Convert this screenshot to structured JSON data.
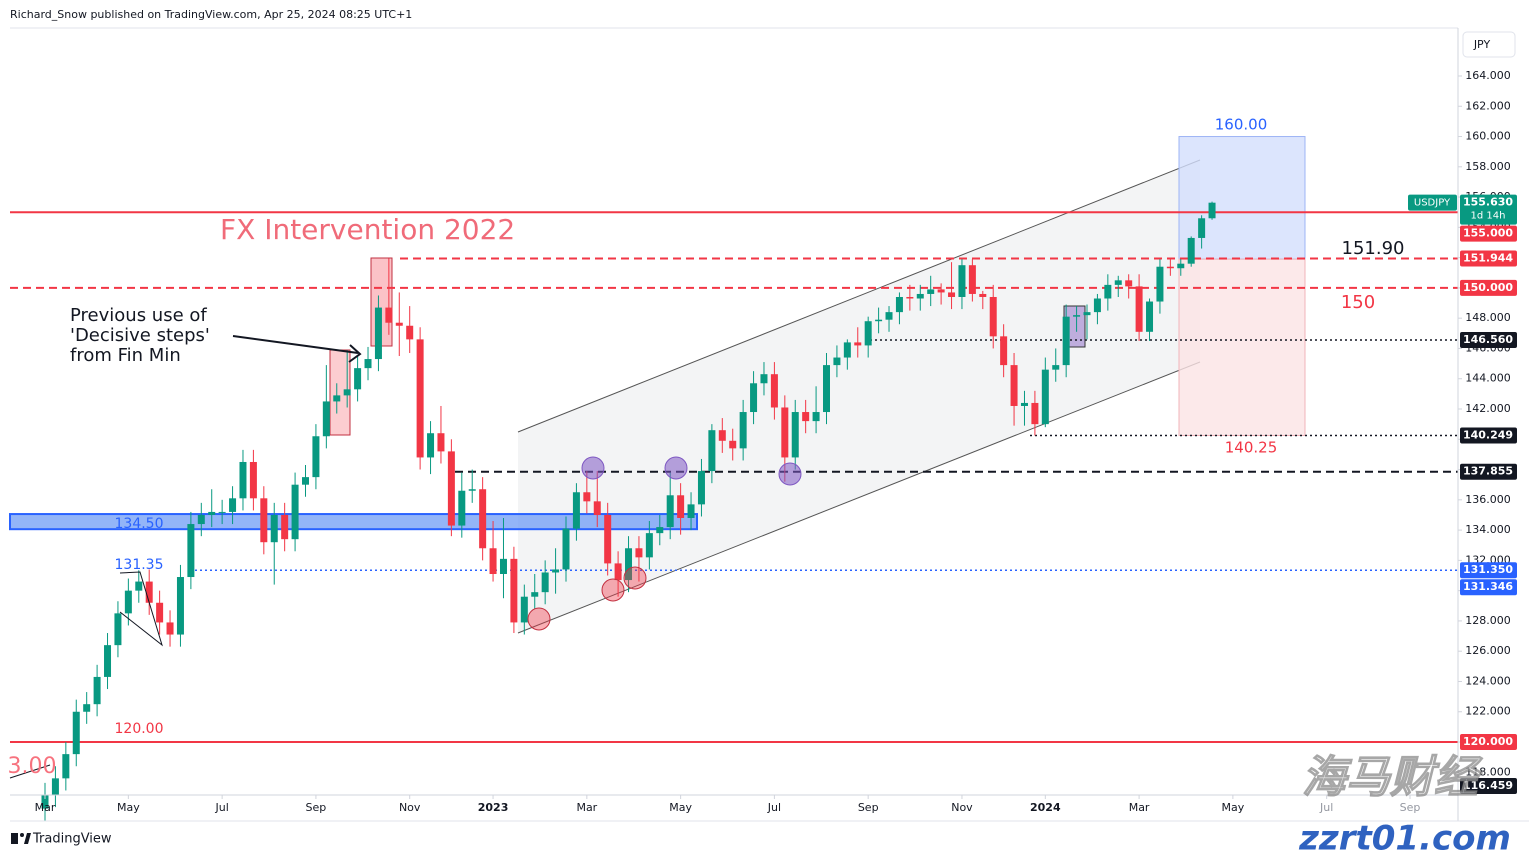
{
  "chart_data": {
    "type": "candlestick",
    "header": "Richard_Snow published on TradingView.com, Apr 25, 2024 08:25 UTC+1",
    "currency": "JPY",
    "footer": "TradingView",
    "countdown": "1d 14h",
    "watermark": [
      "海马财经",
      "zzrt01.com"
    ],
    "annotations": [
      "FX Intervention 2022",
      "Previous use of",
      "'Decisive steps'",
      "from Fin Min",
      "160.00",
      "151.90",
      "150",
      "140.25",
      "134.50",
      "131.35",
      "120.00",
      "3.00"
    ],
    "grid": false,
    "ylim": [
      116.5,
      167.17
    ],
    "yticks": [
      {
        "value": 118,
        "label": "118.000"
      },
      {
        "value": 120,
        "label": "120.000"
      },
      {
        "value": 122,
        "label": "122.000"
      },
      {
        "value": 124,
        "label": "124.000"
      },
      {
        "value": 126,
        "label": "126.000"
      },
      {
        "value": 128,
        "label": "128.000"
      },
      {
        "value": 130,
        "label": "130.000"
      },
      {
        "value": 132,
        "label": "132.000"
      },
      {
        "value": 134,
        "label": "134.000"
      },
      {
        "value": 136,
        "label": "136.000"
      },
      {
        "value": 138,
        "label": "138.000"
      },
      {
        "value": 140,
        "label": "140.000"
      },
      {
        "value": 142,
        "label": "142.000"
      },
      {
        "value": 144,
        "label": "144.000"
      },
      {
        "value": 146,
        "label": "146.000"
      },
      {
        "value": 148,
        "label": "148.000"
      },
      {
        "value": 150,
        "label": "150.000"
      },
      {
        "value": 152,
        "label": "152.000"
      },
      {
        "value": 154,
        "label": "154.000"
      },
      {
        "value": 156,
        "label": "156.000"
      },
      {
        "value": 158,
        "label": "158.000"
      },
      {
        "value": 160,
        "label": "160.000"
      },
      {
        "value": 162,
        "label": "162.000"
      },
      {
        "value": 164,
        "label": "164.000"
      }
    ],
    "categories": [
      "Mar",
      null,
      null,
      null,
      null,
      null,
      null,
      null,
      "May",
      null,
      null,
      null,
      null,
      null,
      null,
      null,
      null,
      "Jul",
      null,
      null,
      null,
      null,
      null,
      null,
      null,
      null,
      "Sep",
      null,
      null,
      null,
      null,
      null,
      null,
      null,
      null,
      "Nov",
      null,
      null,
      null,
      null,
      null,
      null,
      null,
      "2023",
      null,
      null,
      null,
      null,
      null,
      null,
      null,
      null,
      "Mar",
      null,
      null,
      null,
      null,
      null,
      null,
      null,
      null,
      "May",
      null,
      null,
      null,
      null,
      null,
      null,
      null,
      null,
      "Jul",
      null,
      null,
      null,
      null,
      null,
      null,
      null,
      null,
      "Sep",
      null,
      null,
      null,
      null,
      null,
      null,
      null,
      null,
      "Nov",
      null,
      null,
      null,
      null,
      null,
      null,
      null,
      "2024",
      null,
      null,
      null,
      null,
      null,
      null,
      null,
      null,
      "Mar",
      null,
      null,
      null,
      null,
      null,
      null,
      null,
      null,
      "May",
      null,
      null,
      null,
      null,
      null,
      null,
      null,
      null,
      "Jul",
      null,
      null,
      null,
      null,
      null,
      null,
      null,
      "Sep",
      null,
      null,
      null,
      null
    ],
    "series": [
      {
        "name": "USDJPY",
        "up_color": "#089981",
        "down_color": "#f23645",
        "open": [
          115.6,
          116.5,
          117.6,
          119.2,
          122.0,
          122.5,
          124.3,
          126.4,
          128.5,
          130.0,
          130.6,
          129.2,
          127.9,
          127.1,
          130.9,
          134.4,
          135.0,
          135.2,
          135.2,
          136.1,
          138.5,
          136.1,
          133.2,
          135.0,
          133.4,
          137.0,
          137.5,
          140.2,
          142.5,
          142.9,
          143.3,
          144.7,
          145.3,
          148.7,
          147.7,
          147.5,
          146.6,
          138.8,
          140.4,
          139.2,
          134.3,
          136.6,
          136.7,
          132.8,
          131.1,
          132.1,
          127.9,
          129.6,
          129.9,
          131.2,
          131.4,
          134.1,
          136.5,
          135.9,
          135.0,
          131.8,
          130.7,
          132.8,
          132.2,
          133.8,
          134.2,
          136.3,
          134.8,
          135.7,
          137.9,
          140.6,
          139.9,
          139.4,
          141.8,
          143.7,
          144.3,
          142.1,
          138.8,
          141.8,
          141.2,
          141.8,
          144.9,
          145.4,
          146.4,
          146.2,
          147.8,
          147.9,
          148.4,
          149.4,
          149.3,
          149.6,
          149.9,
          149.7,
          149.4,
          151.5,
          149.6,
          149.4,
          146.8,
          144.9,
          142.2,
          142.4,
          141.0,
          144.6,
          144.9,
          148.1,
          148.2,
          148.4,
          149.3,
          150.2,
          150.5,
          150.1,
          147.1,
          149.1,
          151.4,
          151.3,
          151.6,
          153.3,
          154.6,
          null,
          null,
          null,
          null,
          null,
          null,
          null,
          null,
          null,
          null,
          null,
          null,
          null,
          null,
          null,
          null,
          null,
          null,
          null,
          null,
          null,
          null,
          null
        ],
        "high": [
          117.3,
          118.4,
          120.0,
          122.8,
          123.3,
          125.1,
          127.2,
          129.3,
          130.8,
          131.35,
          131.4,
          130.0,
          128.7,
          131.7,
          135.2,
          135.8,
          136.7,
          136.0,
          136.9,
          139.3,
          139.3,
          136.9,
          135.8,
          135.8,
          137.8,
          138.3,
          141.0,
          144.9,
          143.7,
          145.9,
          145.5,
          146.1,
          149.5,
          151.94,
          149.7,
          148.8,
          147.4,
          141.2,
          142.2,
          140.0,
          137.8,
          138.0,
          137.5,
          134.6,
          134.8,
          132.9,
          130.4,
          131.1,
          132.0,
          132.8,
          134.9,
          137.1,
          137.9,
          137.9,
          135.8,
          132.6,
          133.6,
          133.6,
          134.6,
          135.0,
          137.8,
          137.1,
          136.5,
          138.7,
          141.0,
          141.4,
          140.7,
          142.6,
          144.5,
          145.1,
          145.1,
          142.9,
          142.6,
          142.6,
          143.5,
          145.7,
          146.2,
          146.6,
          147.4,
          148.1,
          148.7,
          148.8,
          149.7,
          150.2,
          150.2,
          150.8,
          150.3,
          151.7,
          151.9,
          151.9,
          149.8,
          150.2,
          147.6,
          145.7,
          143.2,
          143.2,
          145.4,
          146.0,
          148.9,
          148.8,
          148.9,
          149.6,
          150.9,
          150.8,
          150.9,
          150.9,
          149.3,
          151.9,
          151.97,
          151.9,
          153.4,
          154.8,
          155.7,
          null,
          null,
          null,
          null,
          null,
          null,
          null,
          null,
          null,
          null,
          null,
          null,
          null,
          null,
          null,
          null,
          null,
          null,
          null,
          null,
          null,
          null,
          null
        ],
        "low": [
          114.8,
          115.7,
          116.8,
          118.4,
          121.2,
          121.7,
          123.5,
          125.6,
          127.7,
          129.2,
          128.4,
          127.1,
          126.3,
          126.3,
          130.1,
          133.6,
          134.2,
          134.4,
          134.4,
          135.3,
          135.3,
          132.4,
          130.4,
          132.6,
          132.6,
          136.2,
          136.7,
          139.4,
          141.7,
          142.1,
          142.5,
          143.9,
          144.5,
          146.9,
          145.5,
          145.7,
          138.0,
          137.7,
          138.4,
          133.6,
          133.5,
          135.8,
          132.0,
          130.6,
          129.5,
          127.2,
          127.1,
          128.8,
          129.1,
          129.8,
          130.6,
          133.3,
          135.1,
          134.2,
          131.0,
          129.6,
          129.9,
          130.6,
          131.4,
          133.0,
          133.4,
          133.7,
          134.0,
          134.9,
          137.1,
          139.1,
          138.6,
          138.6,
          141.0,
          142.9,
          141.3,
          137.2,
          138.0,
          140.4,
          140.4,
          141.0,
          144.1,
          144.6,
          145.4,
          145.4,
          147.0,
          147.1,
          147.6,
          148.5,
          148.5,
          148.8,
          148.9,
          148.6,
          148.6,
          149.1,
          148.6,
          146.0,
          144.1,
          140.9,
          140.9,
          140.25,
          140.8,
          143.8,
          144.1,
          147.1,
          146.6,
          147.6,
          148.5,
          149.4,
          149.3,
          146.5,
          146.5,
          148.3,
          150.8,
          150.8,
          151.4,
          152.6,
          154.5,
          null,
          null,
          null,
          null,
          null,
          null,
          null,
          null,
          null,
          null,
          null,
          null,
          null,
          null,
          null,
          null,
          null,
          null,
          null,
          null,
          null,
          null,
          null
        ],
        "close": [
          116.5,
          117.6,
          119.2,
          122.0,
          122.5,
          124.3,
          126.4,
          128.5,
          130.0,
          130.6,
          129.2,
          127.9,
          127.1,
          130.9,
          134.4,
          135.0,
          135.2,
          135.2,
          136.1,
          138.5,
          136.1,
          133.2,
          135.0,
          133.4,
          137.0,
          137.5,
          140.2,
          142.5,
          142.9,
          143.3,
          144.7,
          145.3,
          148.7,
          147.7,
          147.5,
          146.6,
          138.8,
          140.4,
          139.2,
          134.3,
          136.6,
          136.7,
          132.8,
          131.1,
          132.1,
          127.9,
          129.6,
          129.9,
          131.2,
          131.4,
          134.1,
          136.5,
          135.9,
          135.0,
          131.8,
          130.7,
          132.8,
          132.2,
          133.8,
          134.2,
          136.3,
          134.8,
          135.7,
          137.9,
          140.6,
          139.9,
          139.4,
          141.8,
          143.7,
          144.3,
          142.1,
          138.8,
          141.8,
          141.2,
          141.8,
          144.9,
          145.4,
          146.4,
          146.2,
          147.8,
          147.9,
          148.4,
          149.4,
          149.3,
          149.6,
          149.9,
          149.7,
          149.4,
          151.5,
          149.6,
          149.4,
          146.8,
          144.9,
          142.2,
          142.4,
          141.0,
          144.6,
          144.9,
          148.1,
          148.2,
          148.4,
          149.3,
          150.2,
          150.5,
          150.1,
          147.1,
          149.1,
          151.4,
          151.3,
          151.6,
          153.3,
          154.6,
          155.63,
          null,
          null,
          null,
          null,
          null,
          null,
          null,
          null,
          null,
          null,
          null,
          null,
          null,
          null,
          null,
          null,
          null,
          null,
          null,
          null,
          null,
          null,
          null
        ]
      }
    ],
    "levels": [
      {
        "value": 155.0,
        "color": "#f23645",
        "style": "solid"
      },
      {
        "value": 151.944,
        "color": "#f23645",
        "style": "dashed"
      },
      {
        "value": 150.0,
        "color": "#f23645",
        "style": "dashed"
      },
      {
        "value": 146.56,
        "color": "#131722",
        "style": "dotted"
      },
      {
        "value": 140.249,
        "color": "#131722",
        "style": "dotted"
      },
      {
        "value": 137.855,
        "color": "#131722",
        "style": "dashed"
      },
      {
        "value": 131.35,
        "color": "#2962ff",
        "style": "dotted"
      },
      {
        "value": 120.0,
        "color": "#f23645",
        "style": "solid"
      }
    ],
    "zones": [
      {
        "from": 134.06,
        "to": 135.06,
        "color": "#6f9cf5"
      },
      {
        "from": 151.9,
        "to": 160.0,
        "color": "#d3defc"
      },
      {
        "from": 140.25,
        "to": 151.9,
        "color": "#fbe3e5"
      }
    ],
    "price_tags": [
      {
        "value": 155.63,
        "label": "155.630",
        "color": "#089981"
      },
      {
        "value": 155.0,
        "label": "155.000",
        "color": "#f23645"
      },
      {
        "value": 151.944,
        "label": "151.944",
        "color": "#f23645"
      },
      {
        "value": 150.0,
        "label": "150.000",
        "color": "#f23645"
      },
      {
        "value": 146.56,
        "label": "146.560",
        "color": "#131722"
      },
      {
        "value": 140.249,
        "label": "140.249",
        "color": "#131722"
      },
      {
        "value": 137.855,
        "label": "137.855",
        "color": "#131722"
      },
      {
        "value": 131.35,
        "label": "131.350",
        "color": "#2962ff"
      },
      {
        "value": 131.346,
        "label": "131.346",
        "color": "#2962ff"
      },
      {
        "value": 120.0,
        "label": "120.000",
        "color": "#f23645"
      },
      {
        "value": 116.459,
        "label": "116.459",
        "color": "#131722"
      }
    ]
  }
}
